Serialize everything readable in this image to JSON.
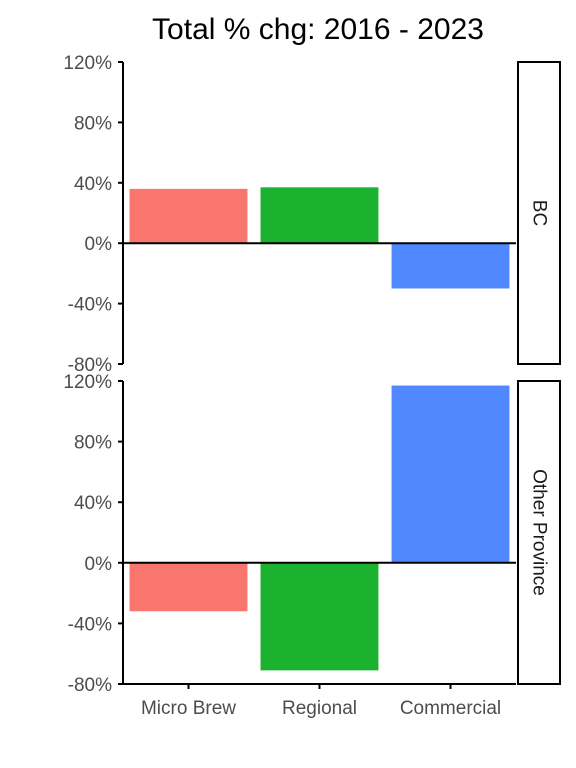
{
  "chart_data": {
    "type": "bar",
    "title": "Total % chg: 2016 - 2023",
    "xlabel": "",
    "ylabel": "",
    "categories": [
      "Micro Brew",
      "Regional",
      "Commercial"
    ],
    "colors": [
      "#F8766D",
      "#1AB22E",
      "#4F88FF"
    ],
    "ylim": [
      -80,
      120
    ],
    "yticks": [
      -80,
      -40,
      0,
      40,
      80,
      120
    ],
    "ytick_labels": [
      "-80%",
      "-40%",
      "0%",
      "40%",
      "80%",
      "120%"
    ],
    "grid": false,
    "legend": "none",
    "facets": [
      {
        "label": "BC",
        "values": [
          36,
          37,
          -30
        ]
      },
      {
        "label": "Other Province",
        "values": [
          -32,
          -71,
          117
        ]
      }
    ]
  }
}
